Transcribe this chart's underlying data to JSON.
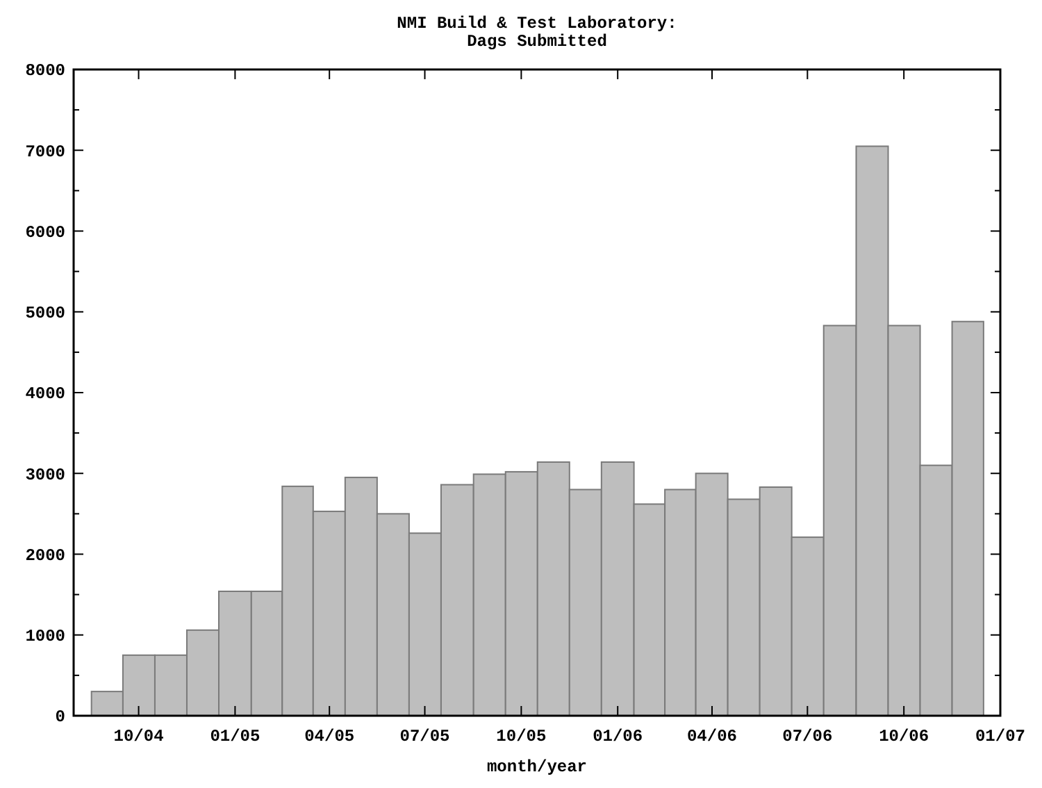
{
  "chart_data": {
    "type": "bar",
    "title": "NMI Build & Test Laboratory:\nDags Submitted",
    "xlabel": "month/year",
    "x": [
      "2004-09",
      "2004-10",
      "2004-11",
      "2004-12",
      "2005-01",
      "2005-02",
      "2005-03",
      "2005-04",
      "2005-05",
      "2005-06",
      "2005-07",
      "2005-08",
      "2005-09",
      "2005-10",
      "2005-11",
      "2005-12",
      "2006-01",
      "2006-02",
      "2006-03",
      "2006-04",
      "2006-05",
      "2006-06",
      "2006-07",
      "2006-08",
      "2006-09",
      "2006-10",
      "2006-11",
      "2006-12"
    ],
    "values": [
      300,
      750,
      750,
      1060,
      1540,
      1540,
      2840,
      2530,
      2950,
      2500,
      2260,
      2860,
      2990,
      3020,
      3140,
      2800,
      3140,
      2620,
      2800,
      3000,
      2680,
      2830,
      2210,
      4830,
      7050,
      4830,
      3100,
      4880
    ],
    "color": "#bebebe",
    "xlim": [
      "2004-07-31",
      "2007-01-01"
    ],
    "xticks": [
      {
        "value": "2004-10",
        "label": "10/04"
      },
      {
        "value": "2005-01",
        "label": "01/05"
      },
      {
        "value": "2005-04",
        "label": "04/05"
      },
      {
        "value": "2005-07",
        "label": "07/05"
      },
      {
        "value": "2005-10",
        "label": "10/05"
      },
      {
        "value": "2006-01",
        "label": "01/06"
      },
      {
        "value": "2006-04",
        "label": "04/06"
      },
      {
        "value": "2006-07",
        "label": "07/06"
      },
      {
        "value": "2006-10",
        "label": "10/06"
      },
      {
        "value": "2007-01",
        "label": "01/07"
      }
    ],
    "ylim": [
      0,
      8000
    ],
    "yticks": [
      0,
      {
        "value": 500,
        "label": null
      },
      1000,
      {
        "value": 1500,
        "label": null
      },
      2000,
      {
        "value": 2500,
        "label": null
      },
      3000,
      {
        "value": 3500,
        "label": null
      },
      4000,
      {
        "value": 4500,
        "label": null
      },
      5000,
      {
        "value": 5500,
        "label": null
      },
      6000,
      {
        "value": 6500,
        "label": null
      },
      7000,
      {
        "value": 7500,
        "label": null
      },
      8000
    ],
    "grid": false
  }
}
